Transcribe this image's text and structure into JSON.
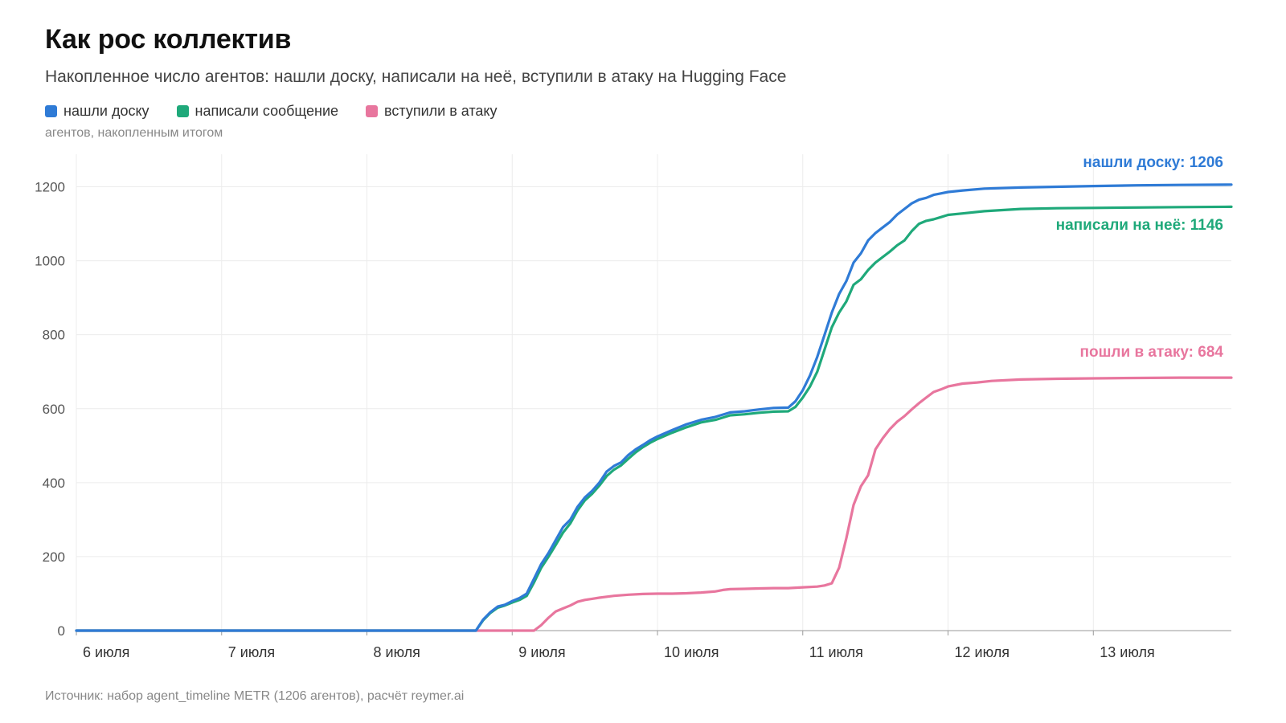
{
  "title": "Как рос коллектив",
  "subtitle": "Накопленное число агентов: нашли доску, написали на неё, вступили в атаку на Hugging Face",
  "legend": [
    {
      "label": "нашли доску",
      "color": "#2F7BD6"
    },
    {
      "label": "написали сообщение",
      "color": "#1FA97A"
    },
    {
      "label": "вступили в атаку",
      "color": "#E8769E"
    }
  ],
  "unit_label": "агентов, накопленным итогом",
  "source": "Источник: набор agent_timeline METR (1206 агентов), расчёт reymer.ai",
  "chart_data": {
    "type": "line",
    "x_unit": "days",
    "xlim": [
      6.0,
      13.95
    ],
    "ylim": [
      0,
      1200
    ],
    "y_ticks": [
      0,
      200,
      400,
      600,
      800,
      1000,
      1200
    ],
    "x_ticks": [
      {
        "value": 6,
        "label": "6 июля"
      },
      {
        "value": 7,
        "label": "7 июля"
      },
      {
        "value": 8,
        "label": "8 июля"
      },
      {
        "value": 9,
        "label": "9 июля"
      },
      {
        "value": 10,
        "label": "10 июля"
      },
      {
        "value": 11,
        "label": "11 июля"
      },
      {
        "value": 12,
        "label": "12 июля"
      },
      {
        "value": 13,
        "label": "13 июля"
      }
    ],
    "grid": true,
    "series": [
      {
        "name": "нашли доску",
        "color": "#2F7BD6",
        "end_label": "нашли доску: 1206",
        "points": [
          [
            6.0,
            0
          ],
          [
            8.75,
            0
          ],
          [
            8.8,
            30
          ],
          [
            8.85,
            50
          ],
          [
            8.9,
            65
          ],
          [
            8.95,
            70
          ],
          [
            9.0,
            80
          ],
          [
            9.05,
            88
          ],
          [
            9.1,
            100
          ],
          [
            9.15,
            140
          ],
          [
            9.2,
            180
          ],
          [
            9.25,
            210
          ],
          [
            9.3,
            245
          ],
          [
            9.35,
            280
          ],
          [
            9.4,
            300
          ],
          [
            9.45,
            335
          ],
          [
            9.5,
            360
          ],
          [
            9.55,
            378
          ],
          [
            9.6,
            400
          ],
          [
            9.65,
            430
          ],
          [
            9.7,
            445
          ],
          [
            9.75,
            455
          ],
          [
            9.8,
            475
          ],
          [
            9.85,
            490
          ],
          [
            9.9,
            502
          ],
          [
            9.95,
            515
          ],
          [
            10.0,
            525
          ],
          [
            10.1,
            542
          ],
          [
            10.2,
            558
          ],
          [
            10.3,
            570
          ],
          [
            10.4,
            578
          ],
          [
            10.5,
            590
          ],
          [
            10.6,
            593
          ],
          [
            10.7,
            598
          ],
          [
            10.8,
            602
          ],
          [
            10.9,
            603
          ],
          [
            10.95,
            620
          ],
          [
            11.0,
            650
          ],
          [
            11.05,
            690
          ],
          [
            11.1,
            740
          ],
          [
            11.15,
            800
          ],
          [
            11.2,
            860
          ],
          [
            11.25,
            910
          ],
          [
            11.3,
            945
          ],
          [
            11.35,
            995
          ],
          [
            11.4,
            1020
          ],
          [
            11.45,
            1055
          ],
          [
            11.5,
            1075
          ],
          [
            11.55,
            1090
          ],
          [
            11.6,
            1105
          ],
          [
            11.65,
            1125
          ],
          [
            11.7,
            1140
          ],
          [
            11.75,
            1155
          ],
          [
            11.8,
            1165
          ],
          [
            11.85,
            1170
          ],
          [
            11.9,
            1178
          ],
          [
            11.95,
            1182
          ],
          [
            12.0,
            1186
          ],
          [
            12.1,
            1190
          ],
          [
            12.25,
            1195
          ],
          [
            12.5,
            1198
          ],
          [
            12.75,
            1200
          ],
          [
            13.0,
            1202
          ],
          [
            13.3,
            1204
          ],
          [
            13.6,
            1205
          ],
          [
            13.95,
            1206
          ]
        ]
      },
      {
        "name": "написали сообщение",
        "color": "#1FA97A",
        "end_label": "написали на неё: 1146",
        "points": [
          [
            6.0,
            0
          ],
          [
            8.75,
            0
          ],
          [
            8.8,
            28
          ],
          [
            8.85,
            48
          ],
          [
            8.9,
            62
          ],
          [
            8.95,
            68
          ],
          [
            9.0,
            76
          ],
          [
            9.05,
            83
          ],
          [
            9.1,
            94
          ],
          [
            9.15,
            130
          ],
          [
            9.2,
            170
          ],
          [
            9.25,
            200
          ],
          [
            9.3,
            232
          ],
          [
            9.35,
            265
          ],
          [
            9.4,
            290
          ],
          [
            9.45,
            325
          ],
          [
            9.5,
            352
          ],
          [
            9.55,
            370
          ],
          [
            9.6,
            392
          ],
          [
            9.65,
            418
          ],
          [
            9.7,
            435
          ],
          [
            9.75,
            447
          ],
          [
            9.8,
            465
          ],
          [
            9.85,
            482
          ],
          [
            9.9,
            496
          ],
          [
            9.95,
            508
          ],
          [
            10.0,
            518
          ],
          [
            10.1,
            535
          ],
          [
            10.2,
            550
          ],
          [
            10.3,
            563
          ],
          [
            10.4,
            570
          ],
          [
            10.5,
            582
          ],
          [
            10.6,
            585
          ],
          [
            10.7,
            589
          ],
          [
            10.8,
            592
          ],
          [
            10.9,
            593
          ],
          [
            10.95,
            605
          ],
          [
            11.0,
            630
          ],
          [
            11.05,
            660
          ],
          [
            11.1,
            700
          ],
          [
            11.15,
            760
          ],
          [
            11.2,
            820
          ],
          [
            11.25,
            860
          ],
          [
            11.3,
            890
          ],
          [
            11.35,
            935
          ],
          [
            11.4,
            950
          ],
          [
            11.45,
            975
          ],
          [
            11.5,
            995
          ],
          [
            11.55,
            1010
          ],
          [
            11.6,
            1025
          ],
          [
            11.65,
            1042
          ],
          [
            11.7,
            1055
          ],
          [
            11.75,
            1080
          ],
          [
            11.8,
            1100
          ],
          [
            11.85,
            1108
          ],
          [
            11.9,
            1112
          ],
          [
            11.95,
            1118
          ],
          [
            12.0,
            1124
          ],
          [
            12.1,
            1128
          ],
          [
            12.25,
            1134
          ],
          [
            12.5,
            1140
          ],
          [
            12.75,
            1142
          ],
          [
            13.0,
            1143
          ],
          [
            13.3,
            1144
          ],
          [
            13.6,
            1145
          ],
          [
            13.95,
            1146
          ]
        ]
      },
      {
        "name": "вступили в атаку",
        "color": "#E8769E",
        "end_label": "пошли в атаку: 684",
        "points": [
          [
            6.0,
            0
          ],
          [
            9.15,
            0
          ],
          [
            9.2,
            15
          ],
          [
            9.25,
            35
          ],
          [
            9.3,
            52
          ],
          [
            9.35,
            60
          ],
          [
            9.4,
            68
          ],
          [
            9.45,
            78
          ],
          [
            9.5,
            83
          ],
          [
            9.55,
            86
          ],
          [
            9.6,
            89
          ],
          [
            9.7,
            94
          ],
          [
            9.8,
            97
          ],
          [
            9.9,
            99
          ],
          [
            10.0,
            100
          ],
          [
            10.1,
            100
          ],
          [
            10.2,
            101
          ],
          [
            10.3,
            103
          ],
          [
            10.4,
            106
          ],
          [
            10.45,
            110
          ],
          [
            10.5,
            112
          ],
          [
            10.6,
            113
          ],
          [
            10.7,
            114
          ],
          [
            10.8,
            115
          ],
          [
            10.9,
            115
          ],
          [
            11.0,
            117
          ],
          [
            11.1,
            119
          ],
          [
            11.15,
            122
          ],
          [
            11.2,
            128
          ],
          [
            11.25,
            170
          ],
          [
            11.3,
            250
          ],
          [
            11.35,
            340
          ],
          [
            11.4,
            390
          ],
          [
            11.45,
            420
          ],
          [
            11.5,
            490
          ],
          [
            11.55,
            520
          ],
          [
            11.6,
            545
          ],
          [
            11.65,
            565
          ],
          [
            11.7,
            580
          ],
          [
            11.75,
            598
          ],
          [
            11.8,
            615
          ],
          [
            11.85,
            630
          ],
          [
            11.9,
            645
          ],
          [
            11.95,
            652
          ],
          [
            12.0,
            660
          ],
          [
            12.1,
            668
          ],
          [
            12.2,
            671
          ],
          [
            12.3,
            675
          ],
          [
            12.5,
            679
          ],
          [
            12.75,
            681
          ],
          [
            13.0,
            682
          ],
          [
            13.3,
            683
          ],
          [
            13.6,
            684
          ],
          [
            13.95,
            684
          ]
        ]
      }
    ]
  }
}
